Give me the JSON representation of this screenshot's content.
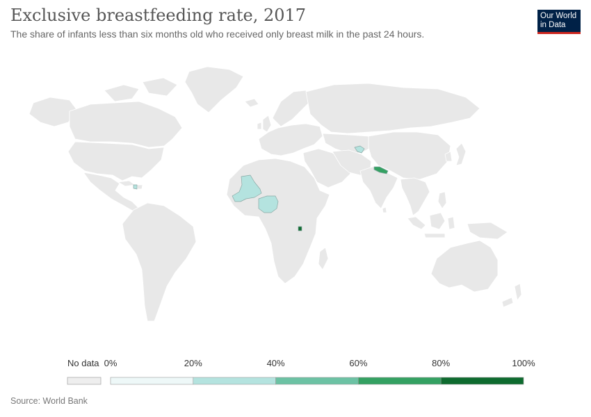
{
  "title": "Exclusive breastfeeding rate, 2017",
  "subtitle": "The share of infants less than six months old who received only breast milk in the past 24 hours.",
  "logo": {
    "line1": "Our World",
    "line2": "in Data"
  },
  "legend": {
    "no_data_label": "No data",
    "no_data_color": "#eeeeee",
    "ticks": [
      "0%",
      "20%",
      "40%",
      "60%",
      "80%",
      "100%"
    ],
    "bins": [
      {
        "from": 0,
        "to": 20,
        "color": "#eef8f8"
      },
      {
        "from": 20,
        "to": 40,
        "color": "#b4e3df"
      },
      {
        "from": 40,
        "to": 60,
        "color": "#6cc2a4"
      },
      {
        "from": 60,
        "to": 80,
        "color": "#34a162"
      },
      {
        "from": 80,
        "to": 100,
        "color": "#0e6b2f"
      }
    ]
  },
  "colors": {
    "no_data_fill": "#e8e8e8",
    "border": "#ffffff"
  },
  "highlighted_regions": [
    {
      "region": "Mali",
      "bin": "20%-40%"
    },
    {
      "region": "Nigeria",
      "bin": "20%-40%"
    },
    {
      "region": "Tajikistan",
      "bin": "20%-40%"
    },
    {
      "region": "Haiti",
      "bin": "20%-40%"
    },
    {
      "region": "Nepal",
      "bin": "60%-80%"
    },
    {
      "region": "Rwanda",
      "bin": "80%-100%"
    }
  ],
  "source": "Source: World Bank"
}
